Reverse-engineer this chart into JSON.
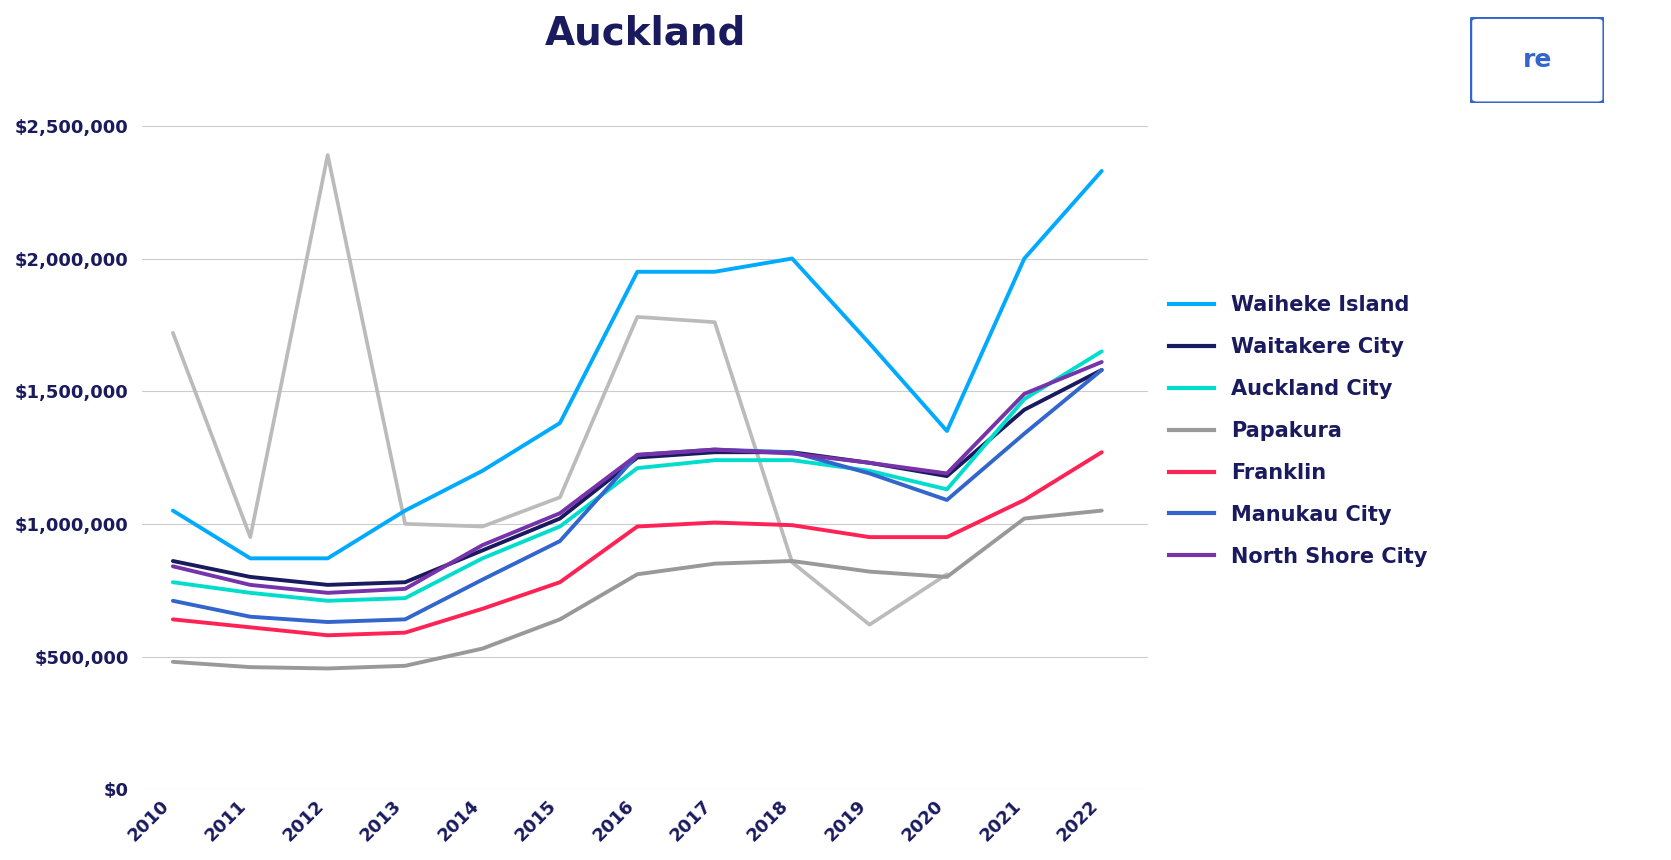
{
  "title": "Auckland",
  "years": [
    2010,
    2011,
    2012,
    2013,
    2014,
    2015,
    2016,
    2017,
    2018,
    2019,
    2020,
    2021,
    2022
  ],
  "series": {
    "Waiheke Island": [
      1050000,
      870000,
      870000,
      1050000,
      1200000,
      1380000,
      1950000,
      1950000,
      2000000,
      1680000,
      1350000,
      2000000,
      2330000
    ],
    "Waitakere City": [
      860000,
      800000,
      770000,
      780000,
      900000,
      1020000,
      1250000,
      1270000,
      1270000,
      1230000,
      1180000,
      1430000,
      1580000
    ],
    "Auckland City": [
      780000,
      740000,
      710000,
      720000,
      870000,
      990000,
      1210000,
      1240000,
      1240000,
      1200000,
      1130000,
      1470000,
      1650000
    ],
    "Papakura": [
      480000,
      460000,
      455000,
      465000,
      530000,
      640000,
      810000,
      850000,
      860000,
      820000,
      800000,
      1020000,
      1050000
    ],
    "Franklin": [
      640000,
      610000,
      580000,
      590000,
      680000,
      780000,
      990000,
      1005000,
      995000,
      950000,
      950000,
      1090000,
      1270000
    ],
    "Manukau City": [
      710000,
      650000,
      630000,
      640000,
      790000,
      935000,
      1260000,
      1280000,
      1270000,
      1190000,
      1090000,
      1340000,
      1580000
    ],
    "North Shore City": [
      840000,
      770000,
      740000,
      755000,
      920000,
      1040000,
      1260000,
      1280000,
      1265000,
      1230000,
      1190000,
      1490000,
      1610000
    ]
  },
  "gray_spike": [
    1720000,
    950000,
    2390000,
    1000000,
    990000,
    1100000,
    1780000,
    1760000,
    855000,
    620000,
    810000,
    null,
    null
  ],
  "colors": {
    "Waiheke Island": "#00aaff",
    "Waitakere City": "#1a1a5e",
    "Auckland City": "#00ddcc",
    "Papakura": "#999999",
    "Franklin": "#ff2255",
    "Manukau City": "#3366cc",
    "North Shore City": "#7733aa"
  },
  "gray_spike_color": "#bbbbbb",
  "ylim": [
    0,
    2700000
  ],
  "yticks": [
    0,
    500000,
    1000000,
    1500000,
    2000000,
    2500000
  ],
  "background_color": "#ffffff",
  "title_fontsize": 28,
  "tick_label_color": "#1a1a5e",
  "grid_color": "#cccccc",
  "linewidth": 2.8,
  "legend_fontsize": 15,
  "tick_fontsize": 13
}
